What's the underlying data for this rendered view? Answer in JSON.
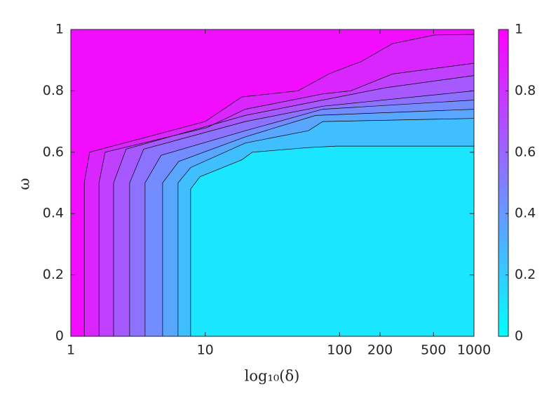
{
  "chart_data": {
    "type": "contourf",
    "xlabel": "log₁₀(δ)",
    "ylabel": "ω",
    "xscale": "log",
    "xlim": [
      1,
      1000
    ],
    "xticks": [
      1,
      10,
      100,
      200,
      500,
      1000
    ],
    "ylim": [
      0,
      1
    ],
    "yticks": [
      0,
      0.2,
      0.4,
      0.6,
      0.8,
      1
    ],
    "clim": [
      0,
      1
    ],
    "cticks": [
      0,
      0.2,
      0.4,
      0.6,
      0.8,
      1
    ],
    "colormap": [
      "#00ffff",
      "#ff00ff"
    ],
    "contours": [
      {
        "level": 0.9,
        "x": [
          1.26,
          1.26,
          1.38,
          10.0,
          18.7,
          49.0,
          84,
          144,
          248,
          509,
          1000
        ],
        "y": [
          0,
          0.5,
          0.6,
          0.7,
          0.78,
          0.8,
          0.856,
          0.895,
          0.954,
          0.982,
          0.984
        ]
      },
      {
        "level": 0.8,
        "x": [
          1.62,
          1.62,
          1.8,
          10.3,
          19.9,
          74.9,
          121,
          248,
          1000
        ],
        "y": [
          0,
          0.5,
          0.6,
          0.68,
          0.74,
          0.79,
          0.8,
          0.855,
          0.89
        ]
      },
      {
        "level": 0.7,
        "x": [
          2.08,
          2.08,
          2.58,
          19.9,
          74.9,
          219,
          1000
        ],
        "y": [
          0,
          0.5,
          0.61,
          0.72,
          0.77,
          0.81,
          0.85
        ]
      },
      {
        "level": 0.6,
        "x": [
          2.74,
          2.74,
          3.49,
          19.9,
          74.9,
          1000
        ],
        "y": [
          0,
          0.5,
          0.61,
          0.7,
          0.75,
          0.8
        ]
      },
      {
        "level": 0.5,
        "x": [
          3.57,
          3.57,
          4.7,
          19.9,
          74.9,
          1000
        ],
        "y": [
          0,
          0.5,
          0.59,
          0.67,
          0.74,
          0.77
        ]
      },
      {
        "level": 0.4,
        "x": [
          4.82,
          4.82,
          6.35,
          19.9,
          66.4,
          1000
        ],
        "y": [
          0,
          0.5,
          0.57,
          0.65,
          0.72,
          0.74
        ]
      },
      {
        "level": 0.3,
        "x": [
          6.28,
          6.28,
          7.79,
          19.9,
          58.6,
          74.9,
          1000
        ],
        "y": [
          0,
          0.5,
          0.55,
          0.63,
          0.67,
          0.7,
          0.71
        ]
      },
      {
        "level": 0.2,
        "x": [
          7.79,
          7.79,
          9.12,
          18.7,
          22.4,
          58.6,
          95.2,
          1000
        ],
        "y": [
          0,
          0.48,
          0.52,
          0.575,
          0.6,
          0.615,
          0.62,
          0.62
        ]
      }
    ]
  }
}
